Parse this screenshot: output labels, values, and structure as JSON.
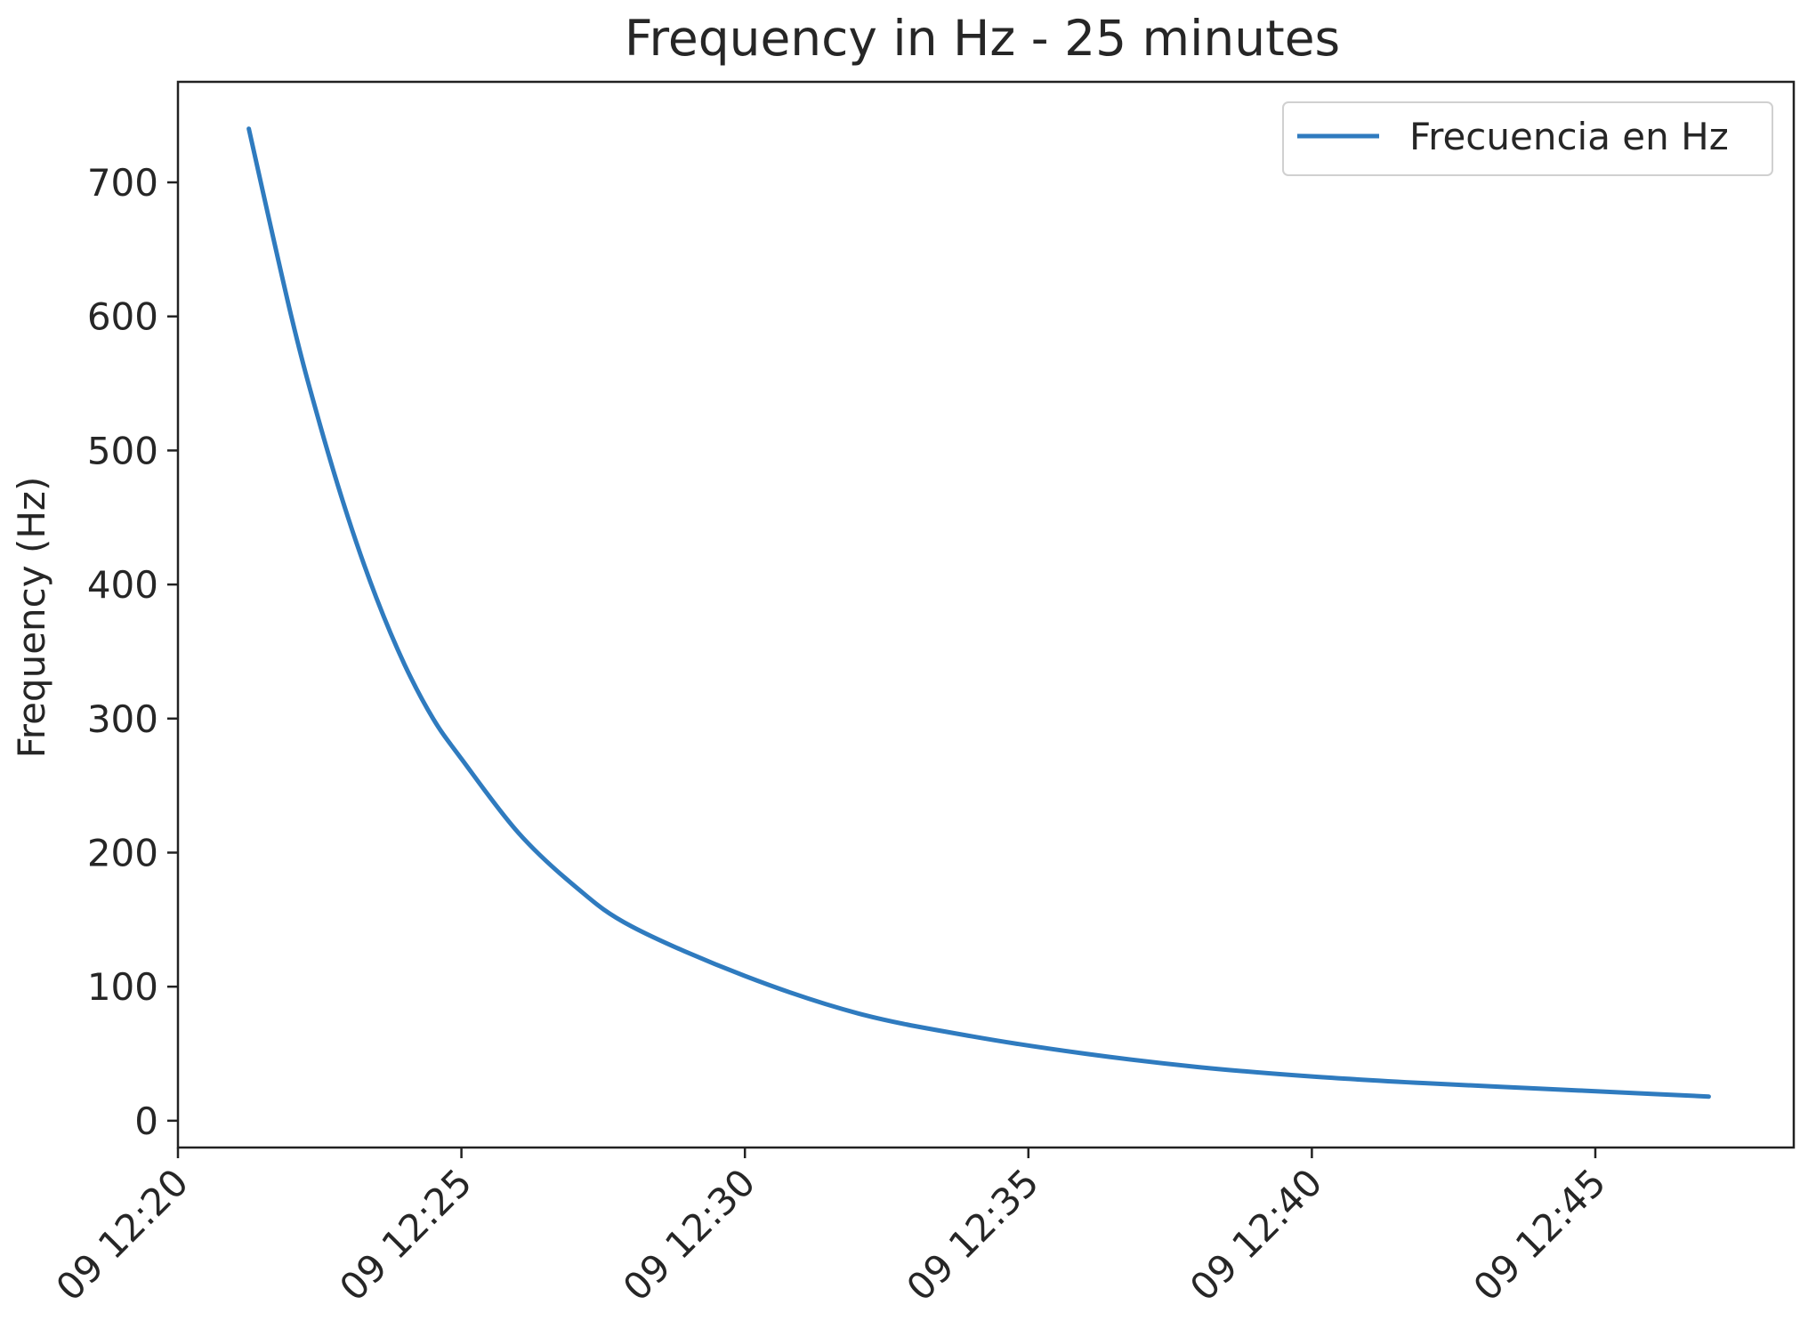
{
  "colors": {
    "series": "#2f7bbf",
    "axis": "#222222",
    "text": "#262626",
    "legend_border": "#d0d0d0"
  },
  "chart_data": {
    "type": "line",
    "title": "Frequency in Hz - 25 minutes",
    "xlabel": "",
    "ylabel": "Frequency (Hz)",
    "x_type": "datetime",
    "xlim": [
      "09 12:20:00",
      "09 12:48:30"
    ],
    "ylim": [
      -20,
      775
    ],
    "x_ticks": [
      "09 12:20",
      "09 12:25",
      "09 12:30",
      "09 12:35",
      "09 12:40",
      "09 12:45"
    ],
    "y_ticks": [
      0,
      100,
      200,
      300,
      400,
      500,
      600,
      700
    ],
    "grid": false,
    "legend": {
      "position": "top-right"
    },
    "series": [
      {
        "name": "Frecuencia en Hz",
        "color": "#2f7bbf",
        "x": [
          "09 12:21:15",
          "09 12:22:00",
          "09 12:22:30",
          "09 12:23:00",
          "09 12:23:30",
          "09 12:24:00",
          "09 12:24:30",
          "09 12:25:00",
          "09 12:26:00",
          "09 12:27:00",
          "09 12:28:00",
          "09 12:30:00",
          "09 12:32:00",
          "09 12:34:00",
          "09 12:36:00",
          "09 12:38:00",
          "09 12:40:00",
          "09 12:42:00",
          "09 12:44:00",
          "09 12:46:00",
          "09 12:47:00"
        ],
        "y": [
          740,
          600,
          520,
          450,
          390,
          340,
          300,
          270,
          215,
          175,
          145,
          108,
          80,
          63,
          50,
          40,
          33,
          28,
          24,
          20,
          18
        ]
      }
    ]
  }
}
